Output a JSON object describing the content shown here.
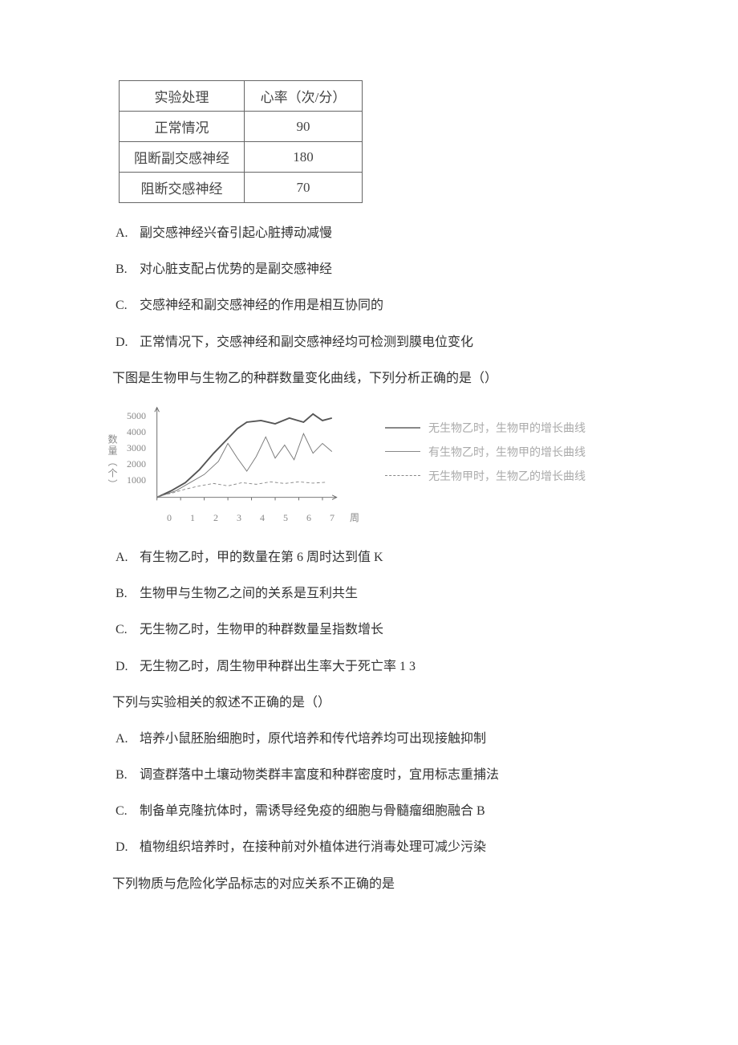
{
  "table1": {
    "col1_header": "实验处理",
    "col2_header": "心率（次/分）",
    "rows": [
      [
        "正常情况",
        "90"
      ],
      [
        "阻断副交感神经",
        "180"
      ],
      [
        "阻断交感神经",
        "70"
      ]
    ],
    "border_color": "#666666",
    "text_color": "#444444"
  },
  "q1_options": {
    "A": {
      "label": "A.",
      "text": "副交感神经兴奋引起心脏搏动减慢"
    },
    "B": {
      "label": "B.",
      "text": "对心脏支配占优势的是副交感神经"
    },
    "C": {
      "label": "C.",
      "text": "交感神经和副交感神经的作用是相互协同的"
    },
    "D": {
      "label": "D.",
      "text": "正常情况下，交感神经和副交感神经均可检测到膜电位变化"
    }
  },
  "q2_stem": "下图是生物甲与生物乙的种群数量变化曲线，下列分析正确的是（）",
  "chart": {
    "type": "line",
    "y_label": "数量（个）",
    "x_label": "周",
    "y_ticks": [
      "5000",
      "4000",
      "3000",
      "2000",
      "1000"
    ],
    "x_ticks": [
      "0",
      "1",
      "2",
      "3",
      "4",
      "5",
      "6",
      "7"
    ],
    "axis_color": "#666666",
    "tick_color": "#888888",
    "background_color": "#ffffff",
    "series": [
      {
        "name": "无生物乙时，生物甲的增长曲线",
        "style": "solid-thick",
        "stroke": "#555555",
        "stroke_width": 2,
        "points": [
          [
            0,
            0
          ],
          [
            0.6,
            400
          ],
          [
            1.2,
            900
          ],
          [
            1.8,
            1700
          ],
          [
            2.4,
            2700
          ],
          [
            3.0,
            3600
          ],
          [
            3.4,
            4200
          ],
          [
            3.8,
            4600
          ],
          [
            4.4,
            4700
          ],
          [
            5.0,
            4500
          ],
          [
            5.6,
            4850
          ],
          [
            6.2,
            4600
          ],
          [
            6.6,
            5100
          ],
          [
            7.0,
            4700
          ],
          [
            7.4,
            4850
          ]
        ]
      },
      {
        "name": "有生物乙时，生物甲的增长曲线",
        "style": "solid-thin",
        "stroke": "#777777",
        "stroke_width": 1,
        "points": [
          [
            0,
            0
          ],
          [
            0.8,
            400
          ],
          [
            1.4,
            900
          ],
          [
            2.0,
            1400
          ],
          [
            2.6,
            2200
          ],
          [
            3.0,
            3300
          ],
          [
            3.4,
            2400
          ],
          [
            3.8,
            1600
          ],
          [
            4.2,
            2500
          ],
          [
            4.6,
            3700
          ],
          [
            5.0,
            2400
          ],
          [
            5.4,
            3200
          ],
          [
            5.8,
            2300
          ],
          [
            6.2,
            3900
          ],
          [
            6.6,
            2700
          ],
          [
            7.0,
            3300
          ],
          [
            7.4,
            2800
          ]
        ]
      },
      {
        "name": "无生物甲时，生物乙的增长曲线",
        "style": "dashed",
        "stroke": "#888888",
        "stroke_width": 1,
        "points": [
          [
            0,
            50
          ],
          [
            0.6,
            250
          ],
          [
            1.2,
            500
          ],
          [
            1.8,
            700
          ],
          [
            2.4,
            850
          ],
          [
            3.0,
            700
          ],
          [
            3.6,
            900
          ],
          [
            4.2,
            800
          ],
          [
            4.8,
            950
          ],
          [
            5.4,
            850
          ],
          [
            6.0,
            950
          ],
          [
            6.6,
            870
          ],
          [
            7.2,
            930
          ]
        ]
      }
    ],
    "xlim": [
      0,
      7.6
    ],
    "ylim": [
      0,
      5500
    ]
  },
  "legend": {
    "items": [
      {
        "style": "solid-thick",
        "text": "无生物乙时，生物甲的增长曲线"
      },
      {
        "style": "solid-thin",
        "text": "有生物乙时，生物甲的增长曲线"
      },
      {
        "style": "dashed",
        "text": "无生物甲时，生物乙的增长曲线"
      }
    ]
  },
  "q2_options": {
    "A": {
      "label": "A.",
      "text": "有生物乙时，甲的数量在第 6 周时达到值 K"
    },
    "B": {
      "label": "B.",
      "text": "生物甲与生物乙之间的关系是互利共生"
    },
    "C": {
      "label": "C.",
      "text": "无生物乙时，生物甲的种群数量呈指数增长"
    },
    "D": {
      "label": "D.",
      "text": "无生物乙时，周生物甲种群出生率大于死亡率 1 3"
    }
  },
  "q3_stem": "下列与实验相关的叙述不正确的是（）",
  "q3_options": {
    "A": {
      "label": "A.",
      "text": "培养小鼠胚胎细胞时，原代培养和传代培养均可出现接触抑制"
    },
    "B": {
      "label": "B.",
      "text": "调查群落中土壤动物类群丰富度和种群密度时，宜用标志重捕法"
    },
    "C": {
      "label": "C.",
      "text": "制备单克隆抗体时，需诱导经免疫的细胞与骨髓瘤细胞融合 B"
    },
    "D": {
      "label": "D.",
      "text": "植物组织培养时，在接种前对外植体进行消毒处理可减少污染"
    }
  },
  "q4_stem": "下列物质与危险化学品标志的对应关系不正确的是"
}
